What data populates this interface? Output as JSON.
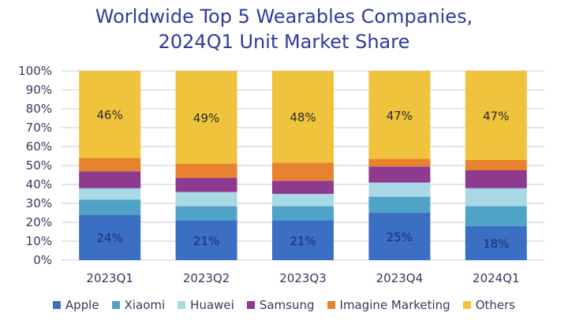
{
  "chart_data": {
    "type": "bar",
    "stacked": true,
    "percent": true,
    "title_lines": [
      "Worldwide Top 5 Wearables Companies,",
      "2024Q1 Unit Market Share"
    ],
    "categories": [
      "2023Q1",
      "2023Q2",
      "2023Q3",
      "2023Q4",
      "2024Q1"
    ],
    "yticks": [
      "0%",
      "10%",
      "20%",
      "30%",
      "40%",
      "50%",
      "60%",
      "70%",
      "80%",
      "90%",
      "100%"
    ],
    "ylim": [
      0,
      100
    ],
    "grid": true,
    "legend_position": "bottom",
    "series": [
      {
        "name": "Apple",
        "color": "#3a6fc4",
        "values": [
          24,
          21,
          21,
          25,
          18
        ],
        "labels": [
          "24%",
          "21%",
          "21%",
          "25%",
          "18%"
        ]
      },
      {
        "name": "Xiaomi",
        "color": "#4fa3c7",
        "values": [
          8,
          7.5,
          7.5,
          8.5,
          10.5
        ]
      },
      {
        "name": "Huawei",
        "color": "#a9d8e6",
        "values": [
          6,
          7.5,
          6.5,
          7.5,
          9.5
        ]
      },
      {
        "name": "Samsung",
        "color": "#8e3a8f",
        "values": [
          9,
          7.5,
          7,
          8.5,
          9.5
        ]
      },
      {
        "name": "Imagine Marketing",
        "color": "#e9822f",
        "values": [
          7,
          7.5,
          9.5,
          4,
          5.5
        ]
      },
      {
        "name": "Others",
        "color": "#efc33c",
        "values": [
          46,
          49,
          48.5,
          46.5,
          47
        ],
        "labels": [
          "46%",
          "49%",
          "48%",
          "47%",
          "47%"
        ]
      }
    ]
  }
}
